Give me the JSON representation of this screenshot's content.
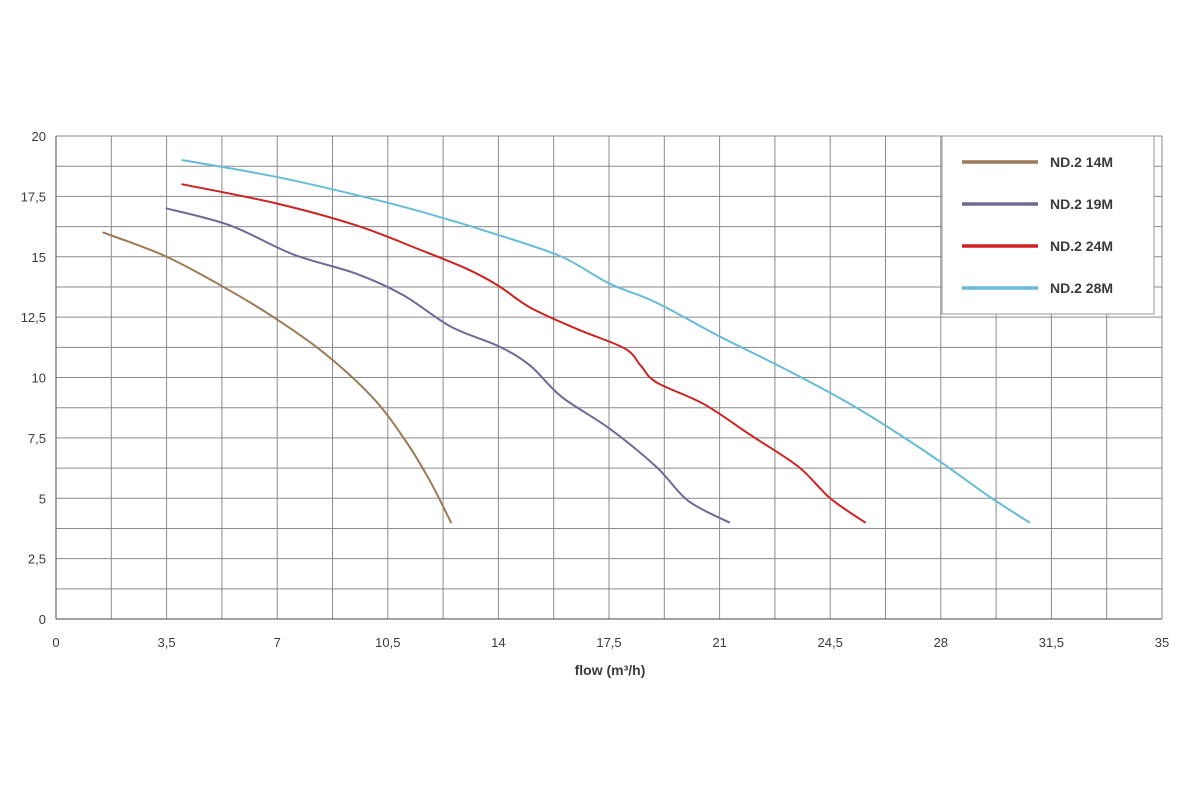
{
  "chart_data": {
    "type": "line",
    "title": "",
    "xlabel": "flow (m³/h)",
    "ylabel": "",
    "xlim": [
      0,
      35
    ],
    "ylim": [
      0,
      20
    ],
    "x_ticks": [
      0,
      3.5,
      7,
      10.5,
      14,
      17.5,
      21,
      24.5,
      28,
      31.5,
      35
    ],
    "x_tick_labels": [
      "0",
      "3,5",
      "7",
      "10,5",
      "14",
      "17,5",
      "21",
      "24,5",
      "28",
      "31,5",
      "35"
    ],
    "y_ticks": [
      0,
      2.5,
      5,
      7.5,
      10,
      12.5,
      15,
      17.5,
      20
    ],
    "y_tick_labels": [
      "0",
      "2,5",
      "5",
      "7,5",
      "10",
      "12,5",
      "15",
      "17,5",
      "20"
    ],
    "grid": true,
    "legend_position": "top-right",
    "series": [
      {
        "name": "ND.2 14M",
        "color": "#9c7a55",
        "points": [
          [
            1.5,
            16
          ],
          [
            3.5,
            15
          ],
          [
            5.5,
            13.6
          ],
          [
            7,
            12.4
          ],
          [
            8.5,
            11
          ],
          [
            10,
            9.2
          ],
          [
            11,
            7.5
          ],
          [
            11.8,
            5.8
          ],
          [
            12.5,
            4
          ]
        ]
      },
      {
        "name": "ND.2 19M",
        "color": "#6e6a96",
        "points": [
          [
            3.5,
            17
          ],
          [
            5.5,
            16.3
          ],
          [
            7.5,
            15.1
          ],
          [
            9.5,
            14.3
          ],
          [
            11,
            13.4
          ],
          [
            12.5,
            12.1
          ],
          [
            14,
            11.3
          ],
          [
            15,
            10.5
          ],
          [
            16,
            9.2
          ],
          [
            17.5,
            7.9
          ],
          [
            19,
            6.3
          ],
          [
            20,
            4.9
          ],
          [
            21.3,
            4
          ]
        ]
      },
      {
        "name": "ND.2 24M",
        "color": "#cc2222",
        "points": [
          [
            4,
            18
          ],
          [
            7,
            17.2
          ],
          [
            9.5,
            16.3
          ],
          [
            11.5,
            15.3
          ],
          [
            13,
            14.5
          ],
          [
            14,
            13.8
          ],
          [
            15,
            12.9
          ],
          [
            16.5,
            12
          ],
          [
            18,
            11.2
          ],
          [
            18.5,
            10.5
          ],
          [
            19,
            9.8
          ],
          [
            20.5,
            8.9
          ],
          [
            22,
            7.6
          ],
          [
            23.5,
            6.3
          ],
          [
            24.5,
            5
          ],
          [
            25.6,
            4
          ]
        ]
      },
      {
        "name": "ND.2 28M",
        "color": "#66bcd6",
        "points": [
          [
            4,
            19
          ],
          [
            7,
            18.3
          ],
          [
            10,
            17.4
          ],
          [
            12,
            16.7
          ],
          [
            14,
            15.9
          ],
          [
            16,
            15
          ],
          [
            17.5,
            13.9
          ],
          [
            19,
            13.1
          ],
          [
            21,
            11.7
          ],
          [
            23,
            10.4
          ],
          [
            25,
            9
          ],
          [
            26.5,
            7.8
          ],
          [
            28,
            6.5
          ],
          [
            29.5,
            5.1
          ],
          [
            30.8,
            4
          ]
        ]
      }
    ]
  }
}
